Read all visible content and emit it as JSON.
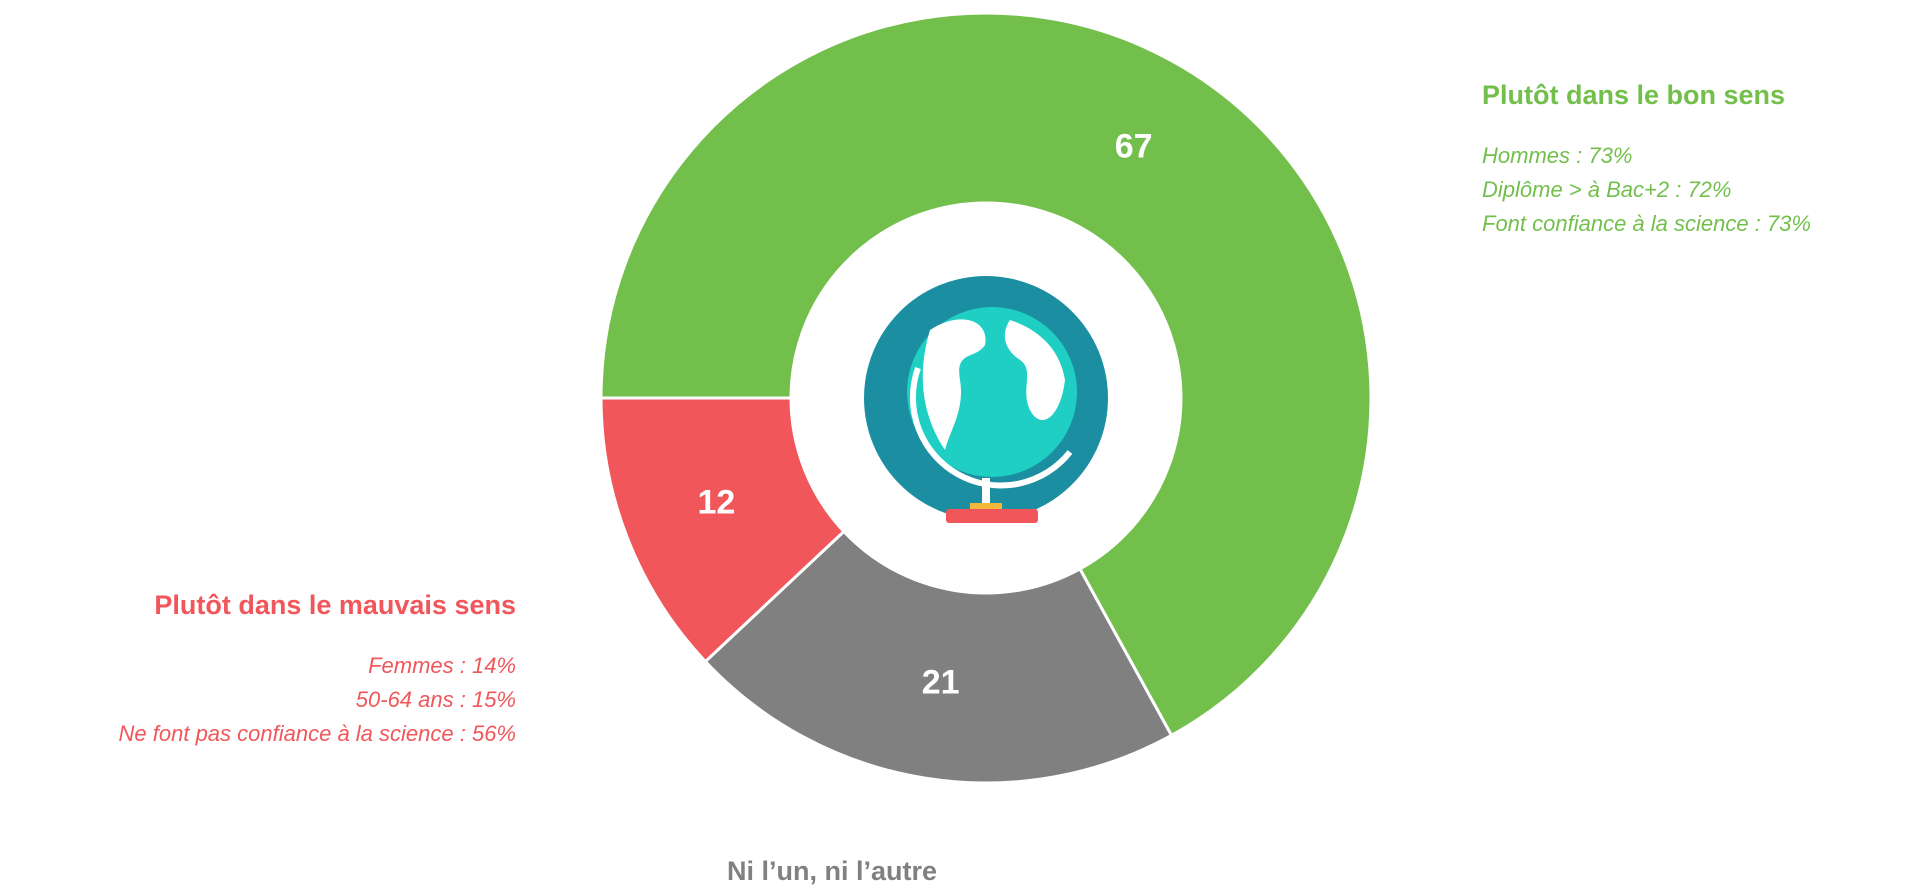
{
  "chart_data": {
    "type": "donut",
    "categories": [
      "Plutôt dans le bon sens",
      "Ni l’un, ni l’autre",
      "Plutôt dans le mauvais sens"
    ],
    "values": [
      67,
      21,
      12
    ],
    "colors": [
      "#72bf4c",
      "#808080",
      "#f0565a"
    ],
    "details": [
      [
        "Hommes : 73%",
        "Diplôme > à Bac+2 : 72%",
        "Font confiance à la science : 73%"
      ],
      null,
      [
        "Femmes : 14%",
        "50-64 ans : 15%",
        "Ne font pas confiance à la science : 56%"
      ]
    ]
  }
}
